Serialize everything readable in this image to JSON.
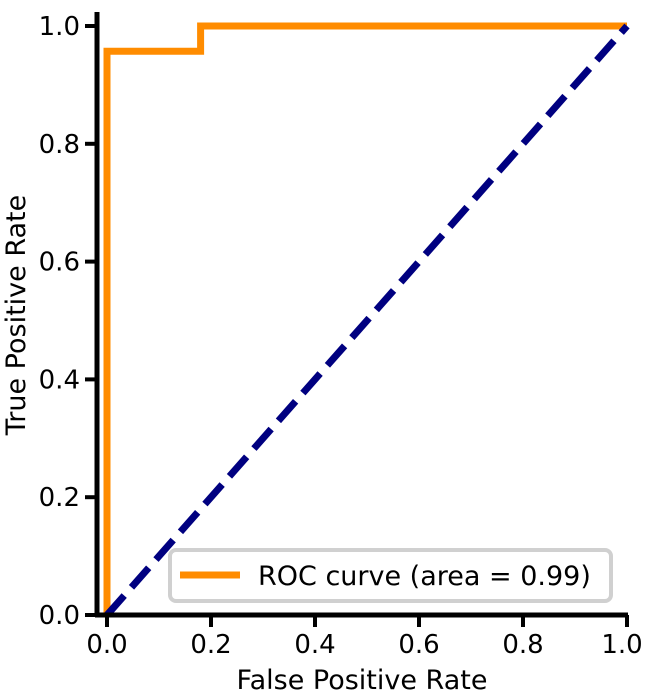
{
  "chart_data": {
    "type": "line",
    "xlabel": "False Positive Rate",
    "ylabel": "True Positive Rate",
    "xlim": [
      0.0,
      1.0
    ],
    "ylim": [
      0.0,
      1.0
    ],
    "x_ticks": [
      "0.0",
      "0.2",
      "0.4",
      "0.6",
      "0.8",
      "1.0"
    ],
    "y_ticks": [
      "0.0",
      "0.2",
      "0.4",
      "0.6",
      "0.8",
      "1.0"
    ],
    "grid": false,
    "legend_position": "lower-right",
    "series": [
      {
        "name": "ROC curve (area = 0.99)",
        "color": "#ff8c00",
        "style": "solid",
        "x": [
          0.0,
          0.0,
          0.18,
          0.18,
          1.0
        ],
        "y": [
          0.0,
          0.957,
          0.957,
          1.0,
          1.0
        ]
      },
      {
        "color": "#000080",
        "style": "dashed",
        "x": [
          0.0,
          1.0
        ],
        "y": [
          0.0,
          1.0
        ]
      }
    ]
  }
}
